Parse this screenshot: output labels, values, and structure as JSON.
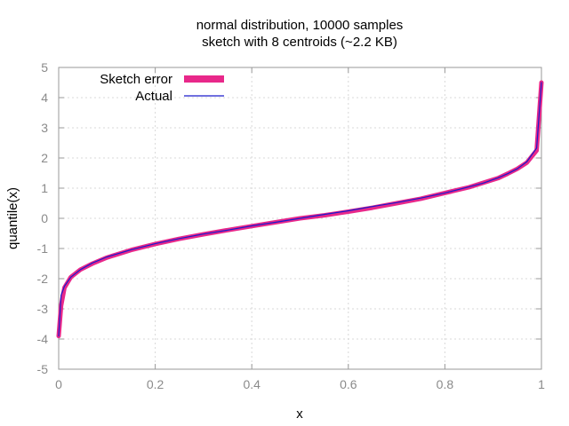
{
  "chart_data": {
    "type": "line",
    "title_lines": [
      "normal distribution, 10000 samples",
      "sketch with 8 centroids (~2.2 KB)"
    ],
    "xlabel": "x",
    "ylabel": "quantile(x)",
    "xlim": [
      0,
      1
    ],
    "ylim": [
      -5,
      5
    ],
    "x_ticks": [
      0,
      0.2,
      0.4,
      0.6,
      0.8,
      1
    ],
    "x_tick_labels": [
      "0",
      "0.2",
      "0.4",
      "0.6",
      "0.8",
      "1"
    ],
    "y_ticks": [
      -5,
      -4,
      -3,
      -2,
      -1,
      0,
      1,
      2,
      3,
      4,
      5
    ],
    "y_tick_labels": [
      "-5",
      "-4",
      "-3",
      "-2",
      "-1",
      "0",
      "1",
      "2",
      "3",
      "4",
      "5"
    ],
    "grid": true,
    "legend_position": "top-left",
    "series": [
      {
        "name": "Sketch error",
        "color": "#e8288a",
        "style": "thick",
        "x": [
          0.0,
          0.005,
          0.012,
          0.025,
          0.045,
          0.07,
          0.1,
          0.15,
          0.2,
          0.25,
          0.3,
          0.35,
          0.4,
          0.45,
          0.5,
          0.55,
          0.6,
          0.65,
          0.7,
          0.75,
          0.8,
          0.85,
          0.88,
          0.91,
          0.93,
          0.95,
          0.97,
          0.99,
          1.0
        ],
        "y": [
          -3.9,
          -2.9,
          -2.3,
          -1.95,
          -1.7,
          -1.5,
          -1.3,
          -1.05,
          -0.85,
          -0.68,
          -0.53,
          -0.39,
          -0.26,
          -0.13,
          0.0,
          0.1,
          0.22,
          0.35,
          0.5,
          0.65,
          0.84,
          1.03,
          1.18,
          1.33,
          1.48,
          1.64,
          1.85,
          2.25,
          4.5
        ]
      },
      {
        "name": "Actual",
        "color": "#1a1acc",
        "style": "thin",
        "x": [
          0.0,
          0.005,
          0.012,
          0.025,
          0.045,
          0.07,
          0.1,
          0.15,
          0.2,
          0.25,
          0.3,
          0.35,
          0.4,
          0.45,
          0.5,
          0.55,
          0.6,
          0.65,
          0.7,
          0.75,
          0.8,
          0.85,
          0.88,
          0.91,
          0.93,
          0.95,
          0.97,
          0.99,
          1.0
        ],
        "y": [
          -3.9,
          -2.55,
          -2.25,
          -1.95,
          -1.7,
          -1.48,
          -1.28,
          -1.04,
          -0.84,
          -0.67,
          -0.52,
          -0.39,
          -0.25,
          -0.13,
          0.0,
          0.13,
          0.25,
          0.39,
          0.52,
          0.67,
          0.84,
          1.04,
          1.17,
          1.34,
          1.48,
          1.64,
          1.88,
          2.33,
          4.5
        ]
      }
    ]
  }
}
